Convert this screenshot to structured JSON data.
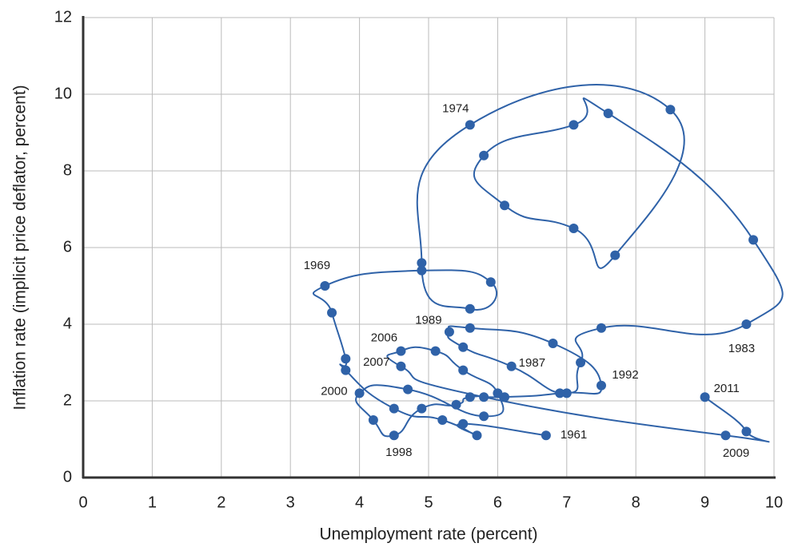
{
  "chart_data": {
    "type": "connected-scatter",
    "xlabel": "Unemployment rate (percent)",
    "ylabel": "Inflation rate (implicit price deflator, percent)",
    "xlim": [
      0,
      10
    ],
    "xticks": [
      0,
      1,
      2,
      3,
      4,
      5,
      6,
      7,
      8,
      9,
      10
    ],
    "ylim": [
      0,
      12
    ],
    "yticks": [
      0,
      2,
      4,
      6,
      8,
      10,
      12
    ],
    "grid": true,
    "series": [
      {
        "color": "#2f62a8",
        "x": [
          6.7,
          5.5,
          5.7,
          5.2,
          4.5,
          3.8,
          3.8,
          3.6,
          3.5,
          4.9,
          5.9,
          5.6,
          4.9,
          5.6,
          8.5,
          7.7,
          7.1,
          6.1,
          5.8,
          7.1,
          7.6,
          9.7,
          9.6,
          7.5,
          7.2,
          7.0,
          6.2,
          5.5,
          5.3,
          5.6,
          6.8,
          7.5,
          6.9,
          6.1,
          5.6,
          5.4,
          4.9,
          4.5,
          4.2,
          4.0,
          4.7,
          5.8,
          6.0,
          5.5,
          5.1,
          4.6,
          4.6,
          5.8,
          9.3,
          9.6,
          9.0
        ],
        "y": [
          1.1,
          1.4,
          1.1,
          1.5,
          1.8,
          2.8,
          3.1,
          4.3,
          5.0,
          5.4,
          5.1,
          4.4,
          5.6,
          9.2,
          9.6,
          5.8,
          6.5,
          7.1,
          8.4,
          9.2,
          9.5,
          6.2,
          4.0,
          3.9,
          3.0,
          2.2,
          2.9,
          3.4,
          3.8,
          3.9,
          3.5,
          2.4,
          2.2,
          2.1,
          2.1,
          1.9,
          1.8,
          1.1,
          1.5,
          2.2,
          2.3,
          1.6,
          2.2,
          2.8,
          3.3,
          3.3,
          2.9,
          2.1,
          1.1,
          1.2,
          2.1
        ],
        "point_labels": [
          "1961",
          null,
          null,
          null,
          null,
          null,
          null,
          null,
          "1969",
          null,
          null,
          null,
          null,
          "1974",
          null,
          null,
          null,
          null,
          null,
          null,
          null,
          null,
          "1983",
          null,
          null,
          null,
          "1987",
          null,
          "1989",
          null,
          null,
          "1992",
          null,
          null,
          null,
          null,
          null,
          "1998",
          null,
          "2000",
          null,
          null,
          null,
          null,
          null,
          "2006",
          "2007",
          null,
          "2009",
          null,
          "2011"
        ]
      }
    ]
  }
}
